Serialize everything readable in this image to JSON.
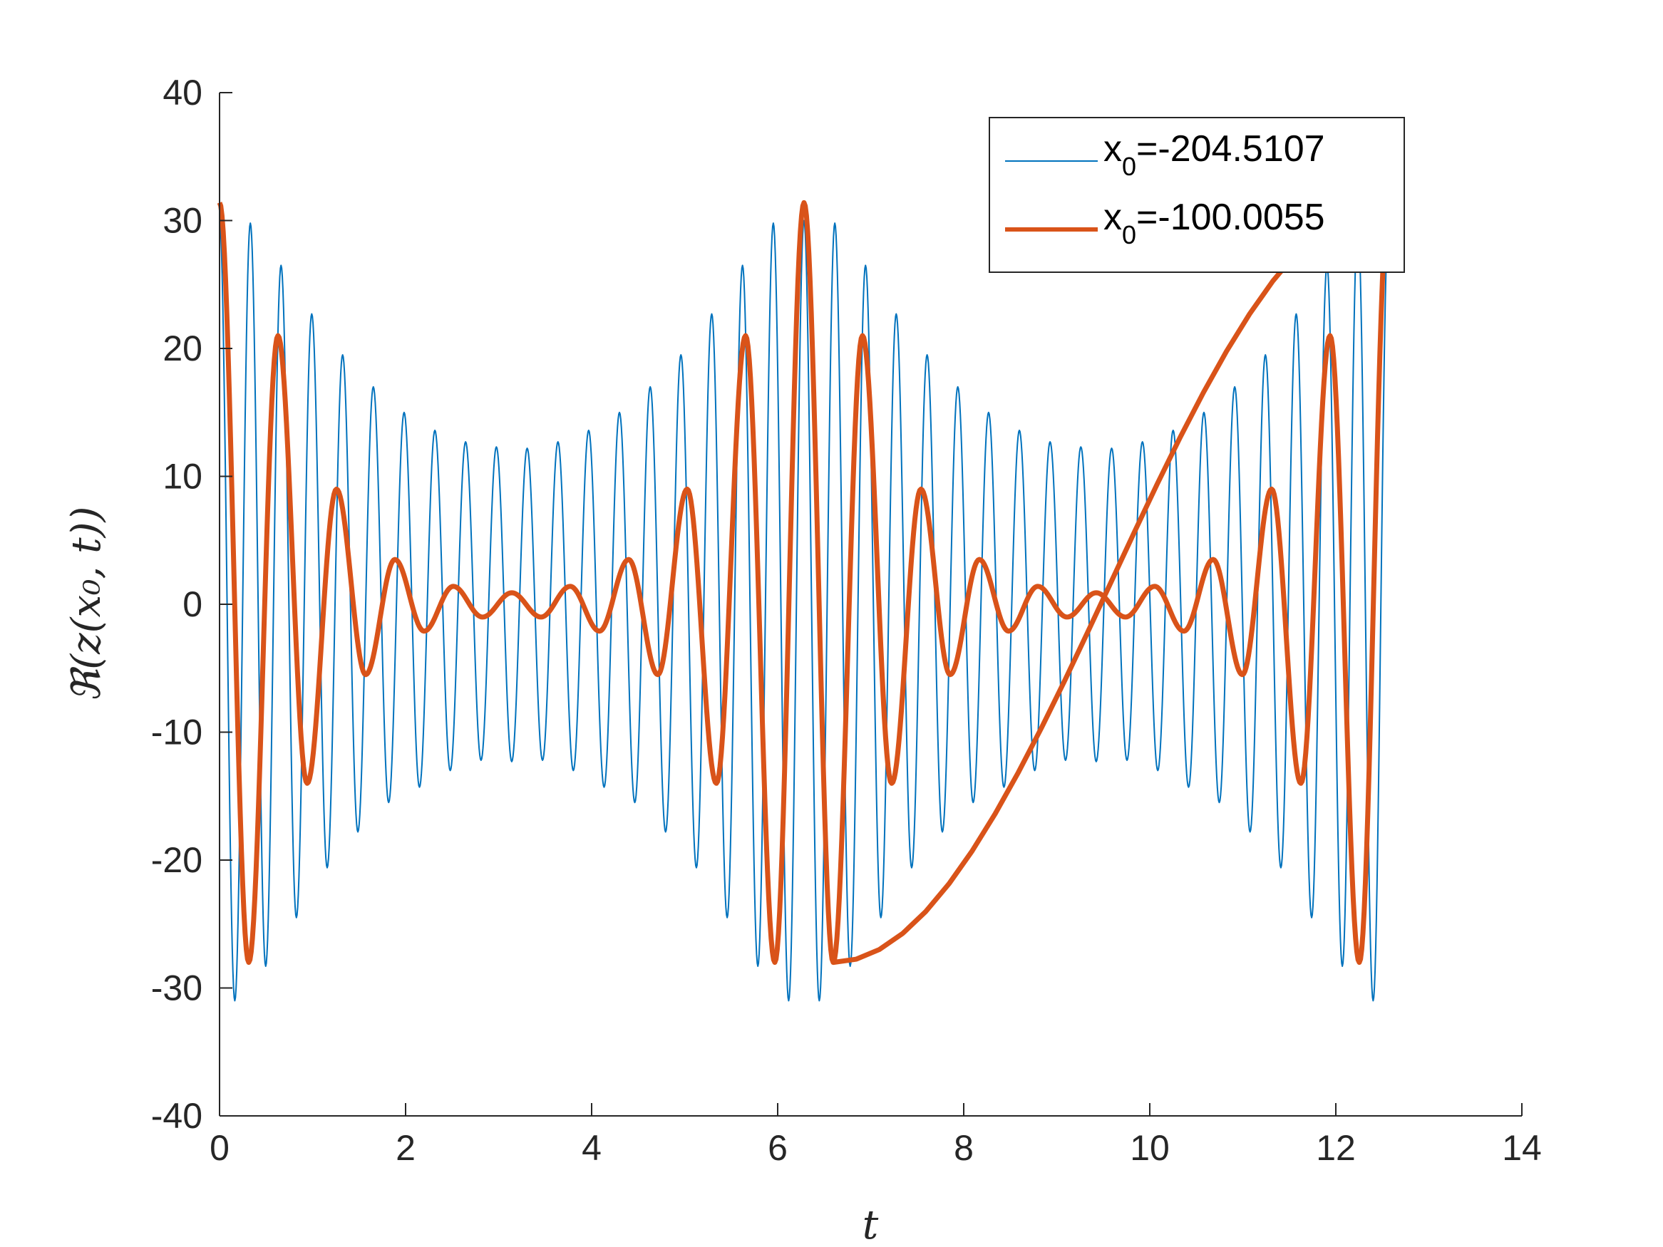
{
  "chart_data": {
    "type": "line",
    "xlabel": "t",
    "ylabel": "ℜ(z(x₀, t))",
    "xlim": [
      0,
      14
    ],
    "ylim": [
      -40,
      40
    ],
    "xticks": [
      "0",
      "2",
      "4",
      "6",
      "8",
      "10",
      "12",
      "14"
    ],
    "yticks": [
      "40",
      "30",
      "20",
      "10",
      "0",
      "-10",
      "-20",
      "-30",
      "-40"
    ],
    "legend_position": "top-right",
    "grid": false,
    "series": [
      {
        "name": "x0=-204.5107",
        "legend_main": "x",
        "legend_sub": "0",
        "legend_rest": "=-204.5107",
        "color": "#0072BD",
        "style": "thin",
        "description": "fast oscillation, ~19 periods per 2π, envelope varies between ~12 and ~31 with period 2π",
        "x": [
          0.0,
          0.164,
          0.331,
          0.496,
          0.661,
          0.826,
          0.991,
          1.157,
          1.323,
          1.487,
          1.653,
          1.818,
          1.984,
          2.149,
          2.315,
          2.48,
          2.645,
          2.811,
          2.976,
          3.141,
          3.307,
          3.472,
          3.638,
          3.803,
          3.968,
          4.134,
          4.299,
          4.464,
          4.63,
          4.795,
          4.96,
          5.126,
          5.291,
          5.457,
          5.622,
          5.787,
          5.953,
          6.118,
          6.283
        ],
        "y": [
          30.0,
          -31.0,
          29.8,
          -28.3,
          26.5,
          -24.5,
          22.7,
          -20.6,
          19.5,
          -17.8,
          17.0,
          -15.5,
          15.0,
          -14.3,
          13.6,
          -13.0,
          12.7,
          -12.2,
          12.3,
          -12.3,
          12.2,
          -12.2,
          12.7,
          -13.0,
          13.6,
          -14.3,
          15.0,
          -15.5,
          17.0,
          -17.8,
          19.5,
          -20.6,
          22.7,
          -24.5,
          26.5,
          -28.3,
          29.8,
          -31.0,
          30.0
        ]
      },
      {
        "name": "x0=-100.0055",
        "legend_main": "x",
        "legend_sub": "0",
        "legend_rest": "=-100.0055",
        "color": "#D95319",
        "style": "thick",
        "description": "slower oscillation, 10 periods per 2π",
        "x": [
          0.0,
          0.314,
          0.628,
          0.942,
          1.257,
          1.571,
          1.885,
          2.199,
          2.513,
          2.827,
          3.142,
          3.456,
          3.77,
          4.084,
          4.398,
          4.712,
          5.027,
          5.341,
          5.655,
          5.969,
          6.283,
          6.597,
          6.912,
          7.226,
          7.54,
          7.854,
          8.168,
          8.482,
          8.796,
          9.111,
          9.425,
          9.739,
          10.053,
          10.367,
          10.681,
          10.996,
          11.31,
          11.624,
          11.938,
          12.252,
          12.566
        ],
        "y": [
          31.4,
          -28.0,
          21.0,
          -14.0,
          9.0,
          -5.5,
          3.5,
          -2.1,
          1.4,
          -1.0,
          0.9,
          -1.0,
          1.4,
          -2.1,
          3.5,
          -5.5,
          9.0,
          -14.0,
          21.0,
          -28.0,
          31.4,
          -28.0,
          21.0,
          -14.0,
          9.0,
          -5.5,
          3.5,
          -2.1,
          1.4,
          -1.0,
          0.9,
          -1.0,
          1.4,
          -2.1,
          3.5,
          -5.5,
          9.0,
          -14.0,
          21.0,
          -28.0,
          31.4
        ]
      }
    ]
  }
}
